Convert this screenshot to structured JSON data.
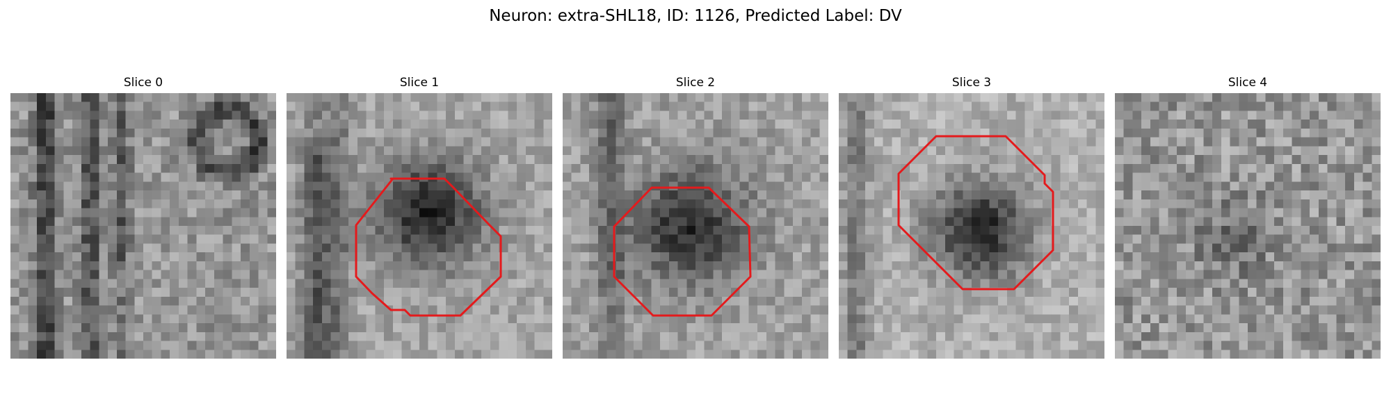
{
  "figure": {
    "title": "Neuron: extra-SHL18, ID: 1126, Predicted Label: DV"
  },
  "panels": [
    {
      "title": "Slice 0",
      "has_contour": false
    },
    {
      "title": "Slice 1",
      "has_contour": true
    },
    {
      "title": "Slice 2",
      "has_contour": true
    },
    {
      "title": "Slice 3",
      "has_contour": true
    },
    {
      "title": "Slice 4",
      "has_contour": false
    }
  ],
  "colors": {
    "contour": "#e41a1c",
    "background": "#ffffff",
    "image_colormap": "gray"
  }
}
